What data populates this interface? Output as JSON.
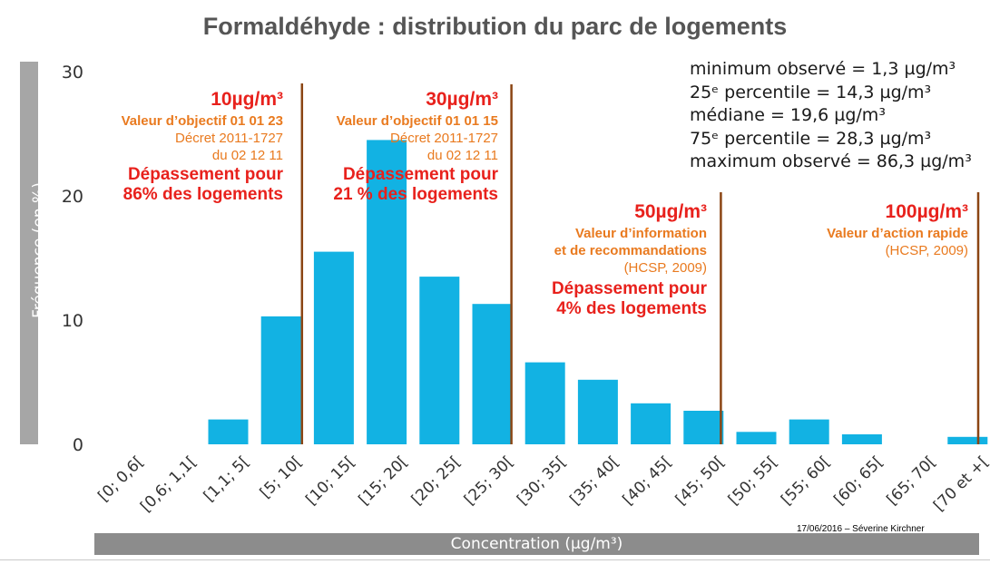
{
  "chart_data": {
    "type": "bar",
    "title": "Formaldéhyde : distribution du parc de logements",
    "xlabel": "Concentration (µg/m³)",
    "ylabel": "Fréquence (en %)",
    "ylim": [
      0,
      30
    ],
    "yticks": [
      "0",
      "10",
      "20",
      "30"
    ],
    "categories": [
      "[0; 0,6[",
      "[0,6; 1,1[",
      "[1,1; 5[",
      "[5; 10[",
      "[10; 15[",
      "[15; 20[",
      "[20; 25[",
      "[25; 30[",
      "[30; 35[",
      "[35; 40[",
      "[40; 45[",
      "[45; 50[",
      "[50; 55[",
      "[55; 60[",
      "[60; 65[",
      "[65; 70[",
      "[70 et +["
    ],
    "values": [
      0,
      0,
      2,
      10.3,
      15.5,
      24.5,
      13.5,
      11.3,
      6.6,
      5.2,
      3.3,
      2.7,
      1.0,
      2.0,
      0.8,
      0,
      0.6
    ],
    "bar_color": "#12b2e3",
    "threshold_color": "#8b4513",
    "grid": false,
    "thresholds": [
      {
        "value": "10µg/m³",
        "lines": [
          {
            "text": "Valeur d’objectif 01 01 23",
            "style": "orgb"
          },
          {
            "text": "Décret 2011-1727",
            "style": "org"
          },
          {
            "text": "du 02 12 11",
            "style": "org"
          }
        ],
        "exceed": [
          "Dépassement pour",
          "86% des logements"
        ]
      },
      {
        "value": "30µg/m³",
        "lines": [
          {
            "text": "Valeur d’objectif 01 01 15",
            "style": "orgb"
          },
          {
            "text": "Décret 2011-1727",
            "style": "org"
          },
          {
            "text": "du 02 12 11",
            "style": "org"
          }
        ],
        "exceed": [
          "Dépassement pour",
          "21 % des logements"
        ]
      },
      {
        "value": "50µg/m³",
        "lines": [
          {
            "text": "Valeur d’information",
            "style": "orgb"
          },
          {
            "text": "et de recommandations",
            "style": "orgb"
          },
          {
            "text": "(HCSP, 2009)",
            "style": "org"
          }
        ],
        "exceed": [
          "Dépassement pour",
          "4% des logements"
        ]
      },
      {
        "value": "100µg/m³",
        "lines": [
          {
            "text": "Valeur d’action rapide",
            "style": "orgb"
          },
          {
            "text": "(HCSP, 2009)",
            "style": "org"
          }
        ],
        "exceed": []
      }
    ],
    "stats": [
      "minimum observé = 1,3 µg/m³",
      "25ᵉ percentile = 14,3 µg/m³",
      "médiane = 19,6 µg/m³",
      "75ᵉ percentile = 28,3 µg/m³",
      "maximum observé = 86,3 µg/m³"
    ]
  },
  "footer": "17/06/2016 – Séverine Kirchner"
}
